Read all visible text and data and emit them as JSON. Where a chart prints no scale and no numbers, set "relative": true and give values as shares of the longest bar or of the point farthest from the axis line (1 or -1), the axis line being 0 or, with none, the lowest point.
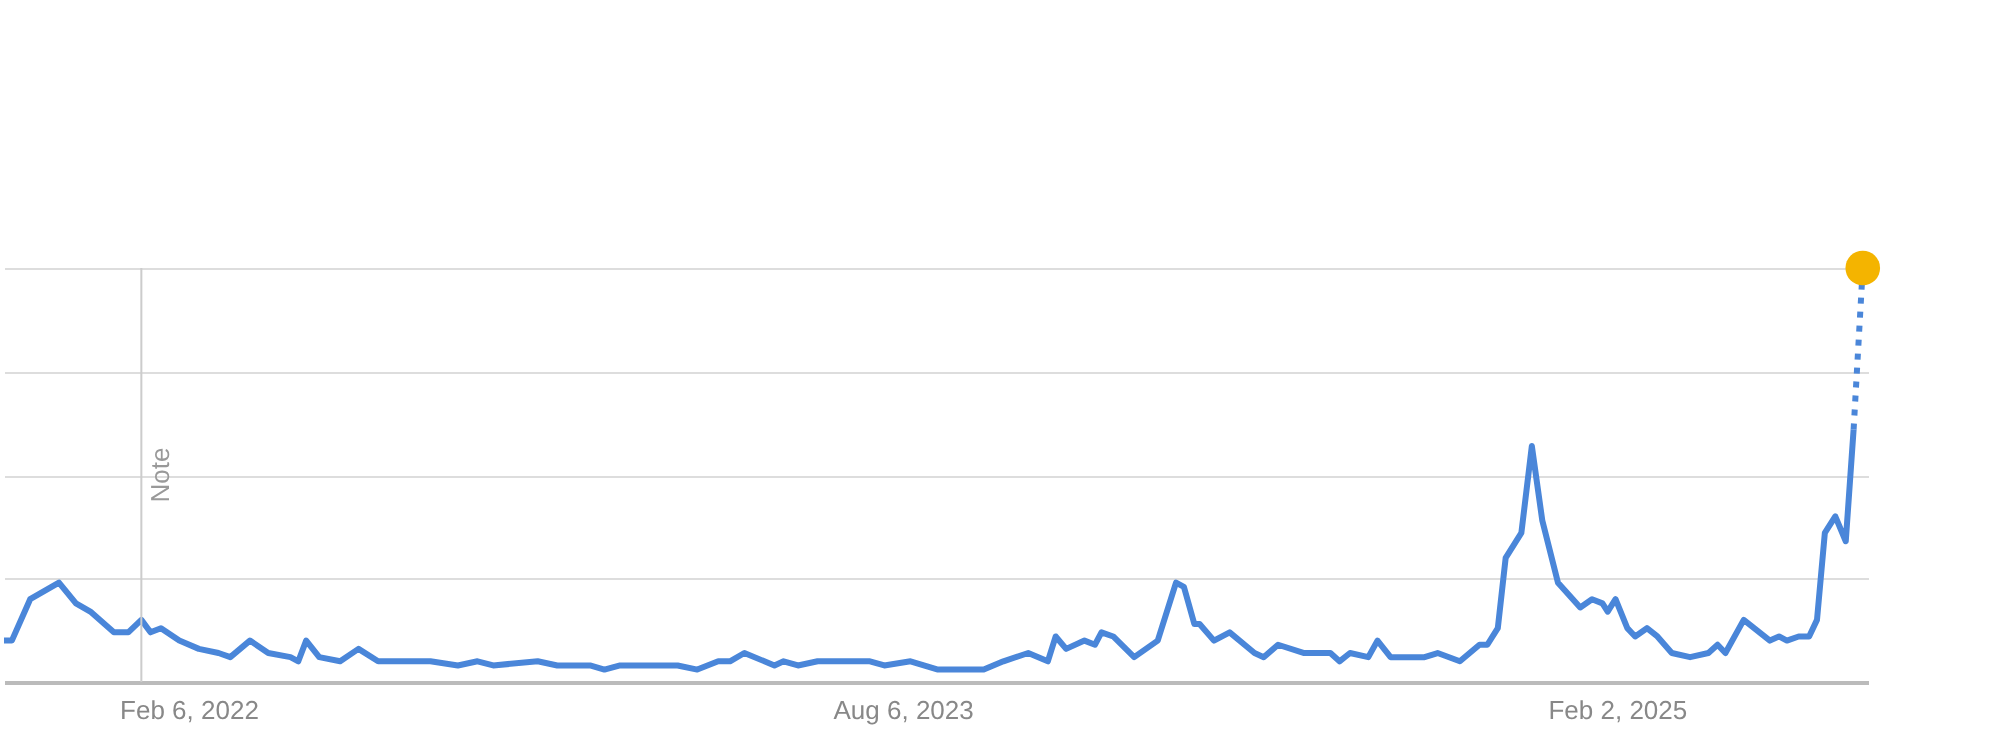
{
  "chart_data": {
    "type": "line",
    "relative": true,
    "grid": "y",
    "xlim": [
      "2021-09-18",
      "2025-08-13"
    ],
    "xticks": [
      {
        "value": "2022-02-06",
        "label": "Feb 6, 2022"
      },
      {
        "value": "2023-08-06",
        "label": "Aug 6, 2023"
      },
      {
        "value": "2025-02-02",
        "label": "Feb 2, 2025"
      }
    ],
    "ref_lines": [
      {
        "axis": "x",
        "value": "2022-01-01",
        "label": "Note",
        "color": "#cccccc"
      }
    ],
    "series": [
      {
        "color": "#4a86d9",
        "line_style": "solid",
        "x": [
          "2021-09-18",
          "2021-09-24",
          "2021-10-08",
          "2021-10-30",
          "2021-11-12",
          "2021-11-23",
          "2021-12-11",
          "2021-12-22",
          "2022-01-01",
          "2022-01-08",
          "2022-01-16",
          "2022-01-30",
          "2022-02-14",
          "2022-03-01",
          "2022-03-10",
          "2022-03-25",
          "2022-04-08",
          "2022-04-25",
          "2022-05-01",
          "2022-05-07",
          "2022-05-17",
          "2022-06-02",
          "2022-06-16",
          "2022-07-01",
          "2022-08-10",
          "2022-08-31",
          "2022-09-15",
          "2022-09-27",
          "2022-10-31",
          "2022-11-15",
          "2022-12-10",
          "2022-12-21",
          "2023-01-02",
          "2023-02-04",
          "2023-02-15",
          "2023-03-02",
          "2023-03-18",
          "2023-03-27",
          "2023-04-07",
          "2023-04-30",
          "2023-05-07",
          "2023-05-18",
          "2023-06-02",
          "2023-07-12",
          "2023-07-23",
          "2023-08-12",
          "2023-09-02",
          "2023-10-07",
          "2023-10-22",
          "2023-11-10",
          "2023-11-25",
          "2023-12-01",
          "2023-12-09",
          "2023-12-23",
          "2023-12-31",
          "2024-01-05",
          "2024-01-14",
          "2024-01-30",
          "2024-02-17",
          "2024-03-02",
          "2024-03-08",
          "2024-03-16",
          "2024-03-20",
          "2024-03-31",
          "2024-04-12",
          "2024-05-01",
          "2024-05-08",
          "2024-05-19",
          "2024-06-08",
          "2024-06-28",
          "2024-07-05",
          "2024-07-13",
          "2024-07-27",
          "2024-08-03",
          "2024-08-13",
          "2024-09-08",
          "2024-09-18",
          "2024-10-05",
          "2024-10-20",
          "2024-10-26",
          "2024-11-03",
          "2024-11-09",
          "2024-11-21",
          "2024-11-29",
          "2024-12-07",
          "2024-12-19",
          "2025-01-05",
          "2025-01-14",
          "2025-01-22",
          "2025-01-26",
          "2025-02-01",
          "2025-02-10",
          "2025-02-16",
          "2025-02-25",
          "2025-03-05",
          "2025-03-16",
          "2025-03-30",
          "2025-04-13",
          "2025-04-20",
          "2025-04-26",
          "2025-05-10",
          "2025-05-30",
          "2025-06-06",
          "2025-06-12",
          "2025-06-21",
          "2025-06-29",
          "2025-07-05",
          "2025-07-11",
          "2025-07-19",
          "2025-07-27",
          "2025-08-02"
        ],
        "values": [
          0.1,
          0.1,
          0.2,
          0.24,
          0.19,
          0.17,
          0.12,
          0.12,
          0.15,
          0.12,
          0.13,
          0.1,
          0.08,
          0.07,
          0.06,
          0.1,
          0.07,
          0.06,
          0.05,
          0.1,
          0.06,
          0.05,
          0.08,
          0.05,
          0.05,
          0.04,
          0.05,
          0.04,
          0.05,
          0.04,
          0.04,
          0.03,
          0.04,
          0.04,
          0.04,
          0.03,
          0.05,
          0.05,
          0.07,
          0.04,
          0.05,
          0.04,
          0.05,
          0.05,
          0.04,
          0.05,
          0.03,
          0.03,
          0.05,
          0.07,
          0.05,
          0.11,
          0.08,
          0.1,
          0.09,
          0.12,
          0.11,
          0.06,
          0.1,
          0.24,
          0.23,
          0.14,
          0.14,
          0.1,
          0.12,
          0.07,
          0.06,
          0.09,
          0.07,
          0.07,
          0.05,
          0.07,
          0.06,
          0.1,
          0.06,
          0.06,
          0.07,
          0.05,
          0.09,
          0.09,
          0.13,
          0.3,
          0.36,
          0.57,
          0.39,
          0.24,
          0.18,
          0.2,
          0.19,
          0.17,
          0.2,
          0.13,
          0.11,
          0.13,
          0.11,
          0.07,
          0.06,
          0.07,
          0.09,
          0.07,
          0.15,
          0.1,
          0.11,
          0.1,
          0.11,
          0.11,
          0.15,
          0.36,
          0.4,
          0.34,
          0.61
        ]
      },
      {
        "color": "#4a86d9",
        "line_style": "dotted",
        "x": [
          "2025-08-02",
          "2025-08-09"
        ],
        "values": [
          0.61,
          1
        ]
      },
      {
        "type": "scatter",
        "marker": "circle",
        "color": "#f4b400",
        "x": [
          "2025-08-09"
        ],
        "values": [
          1
        ]
      }
    ]
  }
}
